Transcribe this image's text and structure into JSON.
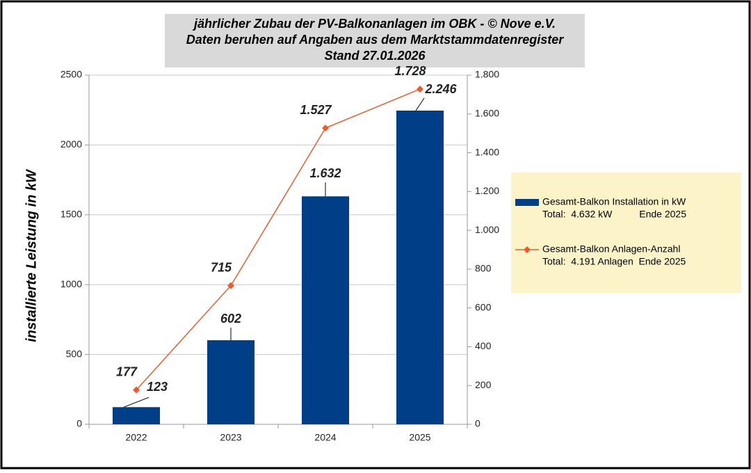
{
  "chart_data": {
    "type": "bar_line",
    "title": [
      "jährlicher Zubau der PV-Balkonanlagen im OBK -  © Nove e.V.",
      "Daten beruhen auf Angaben aus dem Marktstammdatenregister",
      "Stand  27.01.2026"
    ],
    "y_label": "installierte Leistung in kW",
    "categories": [
      "2022",
      "2023",
      "2024",
      "2025"
    ],
    "series": [
      {
        "name": "Gesamt-Balkon Installation in kW",
        "note": "Total:  4.632 kW          Ende 2025",
        "kind": "bar",
        "color": "#003f87",
        "label_color": "#3a6ea5",
        "values": [
          123,
          602,
          1632,
          2246
        ],
        "value_labels": [
          "123",
          "602",
          "1.632",
          "2.246"
        ]
      },
      {
        "name": "Gesamt-Balkon Anlagen-Anzahl",
        "note": "Total:  4.191 Anlagen  Ende 2025",
        "kind": "line",
        "axis": "y2",
        "color": "#f05a28",
        "label_color": "#d0021b",
        "values": [
          177,
          715,
          1527,
          1728
        ],
        "value_labels": [
          "177",
          "715",
          "1.527",
          "1.728"
        ]
      }
    ],
    "ylim": [
      0,
      2500
    ],
    "yticks": [
      0,
      500,
      1000,
      1500,
      2000,
      2500
    ],
    "y2lim": [
      0,
      1800
    ],
    "y2ticks": [
      0,
      200,
      400,
      600,
      800,
      {
        "value": 1000,
        "label": "1.000"
      },
      {
        "value": 1200,
        "label": "1.200"
      },
      {
        "value": 1400,
        "label": "1.400"
      },
      {
        "value": 1600,
        "label": "1.600"
      },
      {
        "value": 1800,
        "label": "1.800"
      }
    ],
    "grid": true
  }
}
